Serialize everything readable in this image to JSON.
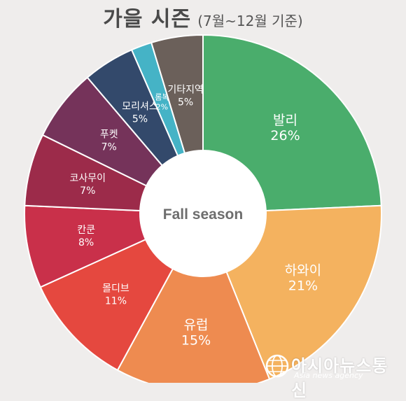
{
  "header": {
    "title": "가을 시즌",
    "subtitle": "(7월~12월 기준)"
  },
  "watermark": {
    "name": "아시아뉴스통신",
    "sub": "Asia news agency"
  },
  "colors": {
    "background": "#efedec",
    "center": "#ffffff",
    "center_text": "#6d6d6d"
  },
  "chart_data": {
    "type": "pie",
    "variant": "donut",
    "center_label": "Fall season",
    "slices": [
      {
        "label": "발리",
        "value": 26,
        "value_label": "26%",
        "color": "#4aad6c"
      },
      {
        "label": "하와이",
        "value": 21,
        "value_label": "21%",
        "color": "#f4b25f"
      },
      {
        "label": "유럽",
        "value": 15,
        "value_label": "15%",
        "color": "#ee8b50"
      },
      {
        "label": "몰디브",
        "value": 11,
        "value_label": "11%",
        "color": "#e5483f"
      },
      {
        "label": "칸쿤",
        "value": 8,
        "value_label": "8%",
        "color": "#c9304a"
      },
      {
        "label": "코사무이",
        "value": 7,
        "value_label": "7%",
        "color": "#9c2b4a"
      },
      {
        "label": "푸켓",
        "value": 7,
        "value_label": "7%",
        "color": "#75335a"
      },
      {
        "label": "모리셔스",
        "value": 5,
        "value_label": "5%",
        "color": "#33496b"
      },
      {
        "label": "롬복",
        "value": 2,
        "value_label": "2%",
        "color": "#45b3c6"
      },
      {
        "label": "기타지역",
        "value": 5,
        "value_label": "5%",
        "color": "#6b605a"
      }
    ]
  }
}
